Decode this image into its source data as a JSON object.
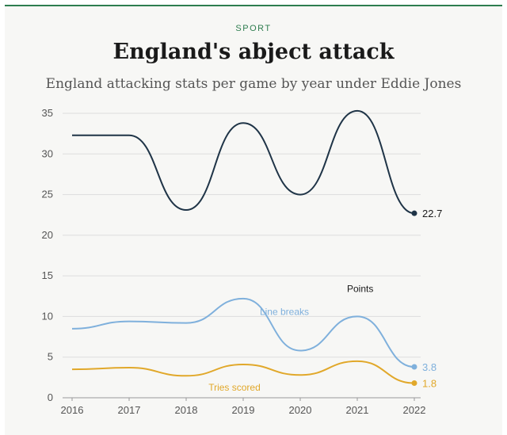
{
  "header": {
    "kicker": "SPORT",
    "title": "England's abject attack",
    "subtitle": "England attacking stats per game by year under Eddie Jones"
  },
  "chart_data": {
    "type": "line",
    "x": [
      "2016",
      "2017",
      "2018",
      "2019",
      "2020",
      "2021",
      "2022"
    ],
    "ylim": [
      0,
      35
    ],
    "yticks": [
      0,
      5,
      10,
      15,
      20,
      25,
      30,
      35
    ],
    "grid": true,
    "series": [
      {
        "name": "Points",
        "values": [
          32.3,
          32.3,
          23.1,
          33.8,
          25.0,
          35.3,
          22.7
        ],
        "end_label": "22.7",
        "color": "#1f3447"
      },
      {
        "name": "Line breaks",
        "values": [
          8.5,
          9.4,
          9.2,
          12.2,
          5.8,
          10.0,
          3.8
        ],
        "end_label": "3.8",
        "color": "#7fb0dc"
      },
      {
        "name": "Tries scored",
        "values": [
          3.5,
          3.7,
          2.7,
          4.1,
          2.8,
          4.5,
          1.8
        ],
        "end_label": "1.8",
        "color": "#e1a82a"
      }
    ]
  }
}
